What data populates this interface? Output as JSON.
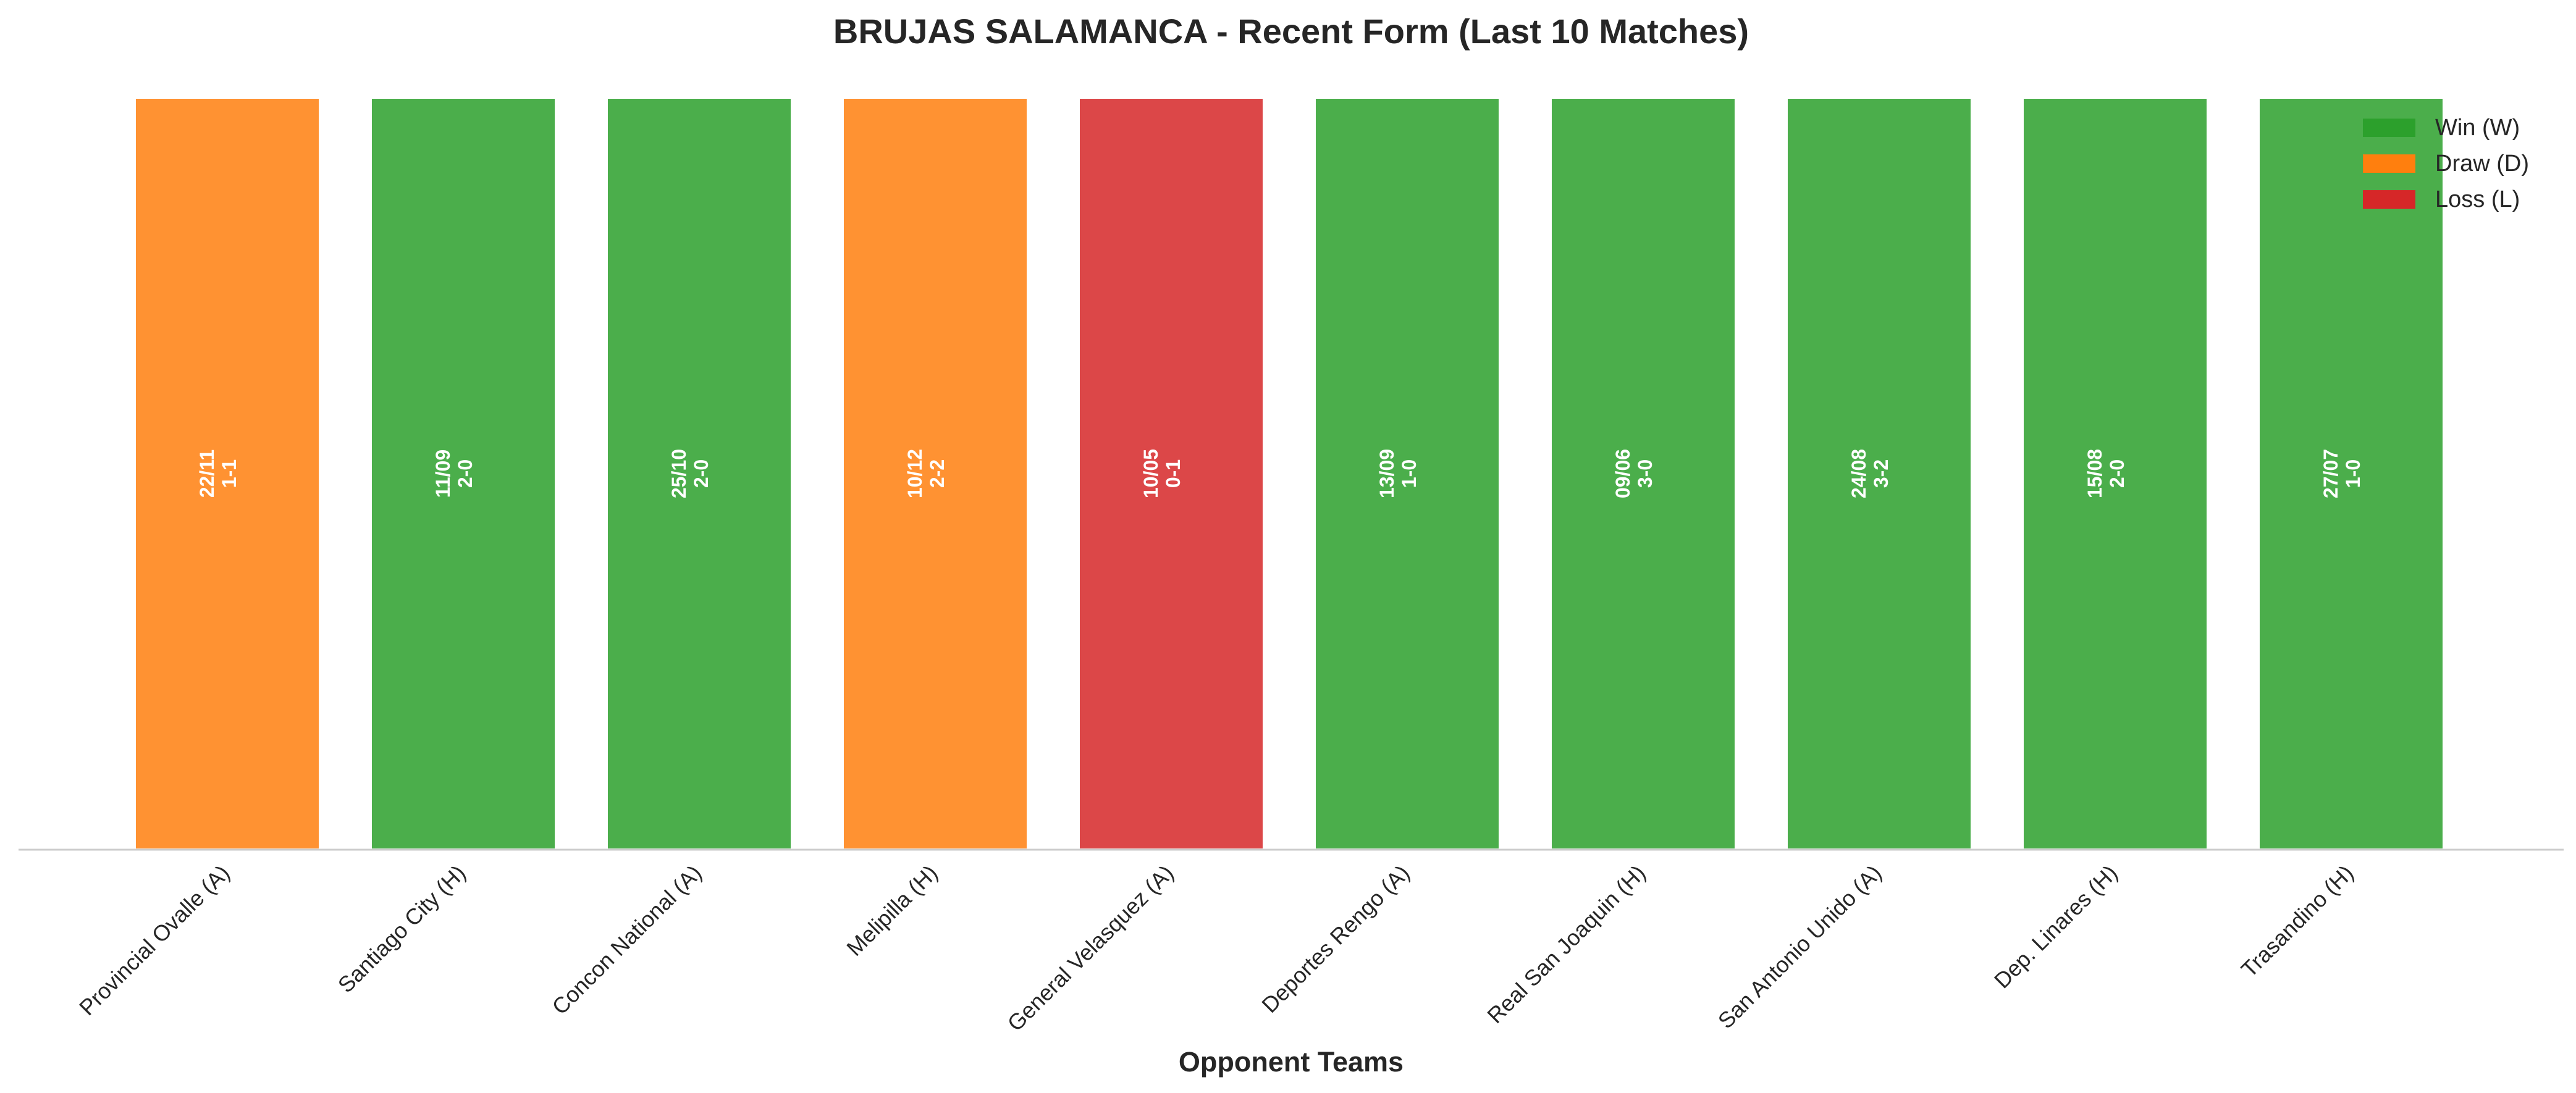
{
  "chart_data": {
    "type": "bar",
    "title": "BRUJAS SALAMANCA - Recent Form (Last 10 Matches)",
    "xlabel": "Opponent Teams",
    "ylabel": "",
    "grid": false,
    "legend_position": "top-right",
    "legend": [
      {
        "key": "W",
        "label": "Win (W)",
        "color": "#2ca02c"
      },
      {
        "key": "D",
        "label": "Draw (D)",
        "color": "#ff7f0e"
      },
      {
        "key": "L",
        "label": "Loss (L)",
        "color": "#d62728"
      }
    ],
    "categories": [
      "Provincial Ovalle (A)",
      "Santiago City (H)",
      "Concon National (A)",
      "Melipilla (H)",
      "General Velasquez (A)",
      "Deportes Rengo (A)",
      "Real San Joaquin (H)",
      "San Antonio Unido (A)",
      "Dep. Linares (H)",
      "Trasandino (H)"
    ],
    "values": [
      1,
      1,
      1,
      1,
      1,
      1,
      1,
      1,
      1,
      1
    ],
    "results": [
      "D",
      "W",
      "W",
      "D",
      "L",
      "W",
      "W",
      "W",
      "W",
      "W"
    ],
    "dates": [
      "22/11",
      "11/09",
      "25/10",
      "10/12",
      "10/05",
      "13/09",
      "09/06",
      "24/08",
      "15/08",
      "27/07"
    ],
    "scores": [
      "1-1",
      "2-0",
      "2-0",
      "2-2",
      "0-1",
      "1-0",
      "3-0",
      "3-2",
      "2-0",
      "1-0"
    ],
    "ylim": [
      0,
      1
    ]
  }
}
